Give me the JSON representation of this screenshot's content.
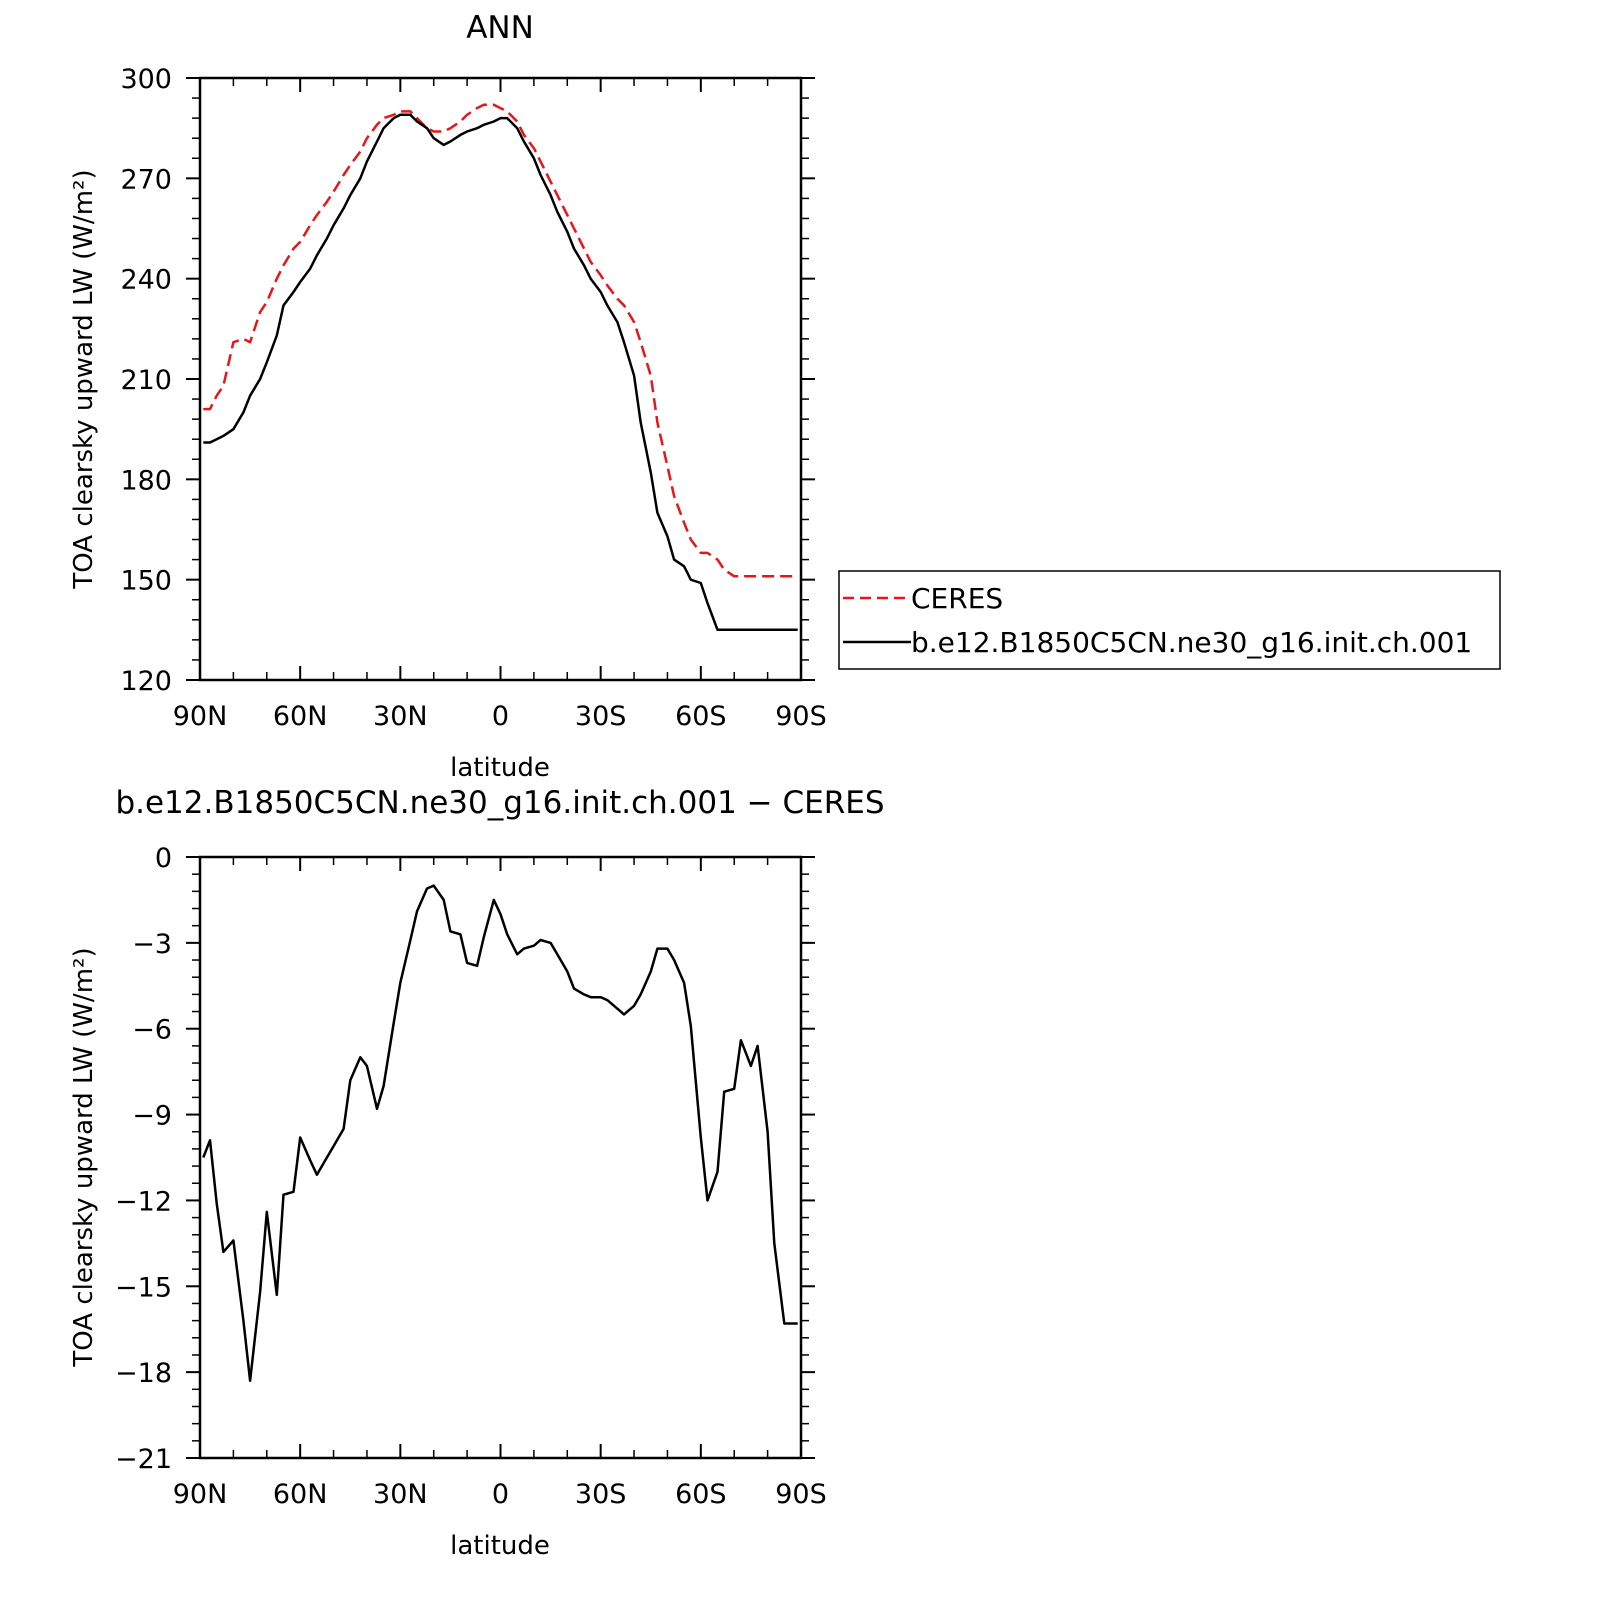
{
  "chart_data": [
    {
      "type": "line",
      "title": "ANN",
      "xlabel": "latitude",
      "ylabel": "TOA clearsky upward LW (W/m²)",
      "xlim": [
        90,
        -90
      ],
      "ylim": [
        120,
        300
      ],
      "xticks": [
        90,
        60,
        30,
        0,
        -30,
        -60,
        -90
      ],
      "xtick_labels": [
        "90N",
        "60N",
        "30N",
        "0",
        "30S",
        "60S",
        "90S"
      ],
      "yticks": [
        120,
        150,
        180,
        210,
        240,
        270,
        300
      ],
      "ytick_labels": [
        "120",
        "150",
        "180",
        "210",
        "240",
        "270",
        "300"
      ],
      "grid": false,
      "legend_position": "right",
      "series": [
        {
          "name": "CERES",
          "color": "#e8161a",
          "dash": "dashed",
          "x": [
            89,
            87,
            85,
            83,
            80,
            77,
            75,
            72,
            70,
            67,
            65,
            62,
            60,
            57,
            55,
            52,
            50,
            47,
            45,
            42,
            40,
            37,
            35,
            32,
            30,
            27,
            25,
            22,
            20,
            17,
            15,
            12,
            10,
            7,
            5,
            2,
            0,
            -2,
            -5,
            -7,
            -10,
            -12,
            -15,
            -17,
            -20,
            -22,
            -25,
            -27,
            -30,
            -32,
            -35,
            -37,
            -40,
            -42,
            -45,
            -47,
            -50,
            -52,
            -55,
            -57,
            -60,
            -62,
            -65,
            -67,
            -70,
            -72,
            -75,
            -77,
            -80,
            -82,
            -85,
            -87,
            -89
          ],
          "y": [
            201,
            201,
            205,
            208,
            221,
            222,
            221,
            230,
            233,
            240,
            244,
            249,
            251,
            256,
            259,
            263,
            266,
            271,
            274,
            278,
            282,
            286,
            288,
            289,
            290,
            290,
            288,
            285,
            284,
            284,
            285,
            287,
            289,
            291,
            292,
            292,
            291,
            290,
            287,
            283,
            279,
            275,
            269,
            265,
            259,
            255,
            249,
            245,
            241,
            238,
            234,
            232,
            227,
            221,
            211,
            197,
            184,
            175,
            167,
            162,
            158,
            158,
            156,
            153,
            151,
            151,
            151,
            151,
            151,
            151,
            151,
            151,
            151
          ]
        },
        {
          "name": "b.e12.B1850C5CN.ne30_g16.init.ch.001",
          "color": "#000000",
          "dash": "solid",
          "x": [
            89,
            87,
            85,
            83,
            80,
            77,
            75,
            72,
            70,
            67,
            65,
            62,
            60,
            57,
            55,
            52,
            50,
            47,
            45,
            42,
            40,
            37,
            35,
            32,
            30,
            27,
            25,
            22,
            20,
            17,
            15,
            12,
            10,
            7,
            5,
            2,
            0,
            -2,
            -5,
            -7,
            -10,
            -12,
            -15,
            -17,
            -20,
            -22,
            -25,
            -27,
            -30,
            -32,
            -35,
            -37,
            -40,
            -42,
            -45,
            -47,
            -50,
            -52,
            -55,
            -57,
            -60,
            -62,
            -65,
            -67,
            -70,
            -72,
            -75,
            -77,
            -80,
            -82,
            -85,
            -87,
            -89
          ],
          "y": [
            191,
            191,
            192,
            193,
            195,
            200,
            205,
            210,
            215,
            223,
            232,
            236,
            239,
            243,
            247,
            252,
            256,
            261,
            265,
            270,
            275,
            281,
            285,
            288,
            289,
            289,
            287,
            285,
            282,
            280,
            281,
            283,
            284,
            285,
            286,
            287,
            288,
            288,
            285,
            281,
            276,
            271,
            265,
            260,
            254,
            249,
            244,
            240,
            236,
            232,
            227,
            221,
            211,
            197,
            182,
            170,
            163,
            156,
            154,
            150,
            149,
            143,
            135,
            135,
            135,
            135,
            135,
            135,
            135,
            135,
            135,
            135,
            135
          ]
        }
      ]
    },
    {
      "type": "line",
      "title": "b.e12.B1850C5CN.ne30_g16.init.ch.001 − CERES",
      "xlabel": "latitude",
      "ylabel": "TOA clearsky upward LW (W/m²)",
      "xlim": [
        90,
        -90
      ],
      "ylim": [
        -21,
        0
      ],
      "xticks": [
        90,
        60,
        30,
        0,
        -30,
        -60,
        -90
      ],
      "xtick_labels": [
        "90N",
        "60N",
        "30N",
        "0",
        "30S",
        "60S",
        "90S"
      ],
      "yticks": [
        0,
        -3,
        -6,
        -9,
        -12,
        -15,
        -18,
        -21
      ],
      "ytick_labels": [
        "0",
        "−3",
        "−6",
        "−9",
        "−12",
        "−15",
        "−18",
        "−21"
      ],
      "grid": false,
      "series": [
        {
          "color": "#000000",
          "dash": "solid",
          "x": [
            89,
            87,
            85,
            83,
            80,
            77,
            75,
            72,
            70,
            67,
            65,
            62,
            60,
            57,
            55,
            52,
            50,
            47,
            45,
            42,
            40,
            37,
            35,
            32,
            30,
            27,
            25,
            22,
            20,
            17,
            15,
            12,
            10,
            7,
            5,
            2,
            0,
            -2,
            -5,
            -7,
            -10,
            -12,
            -15,
            -17,
            -20,
            -22,
            -25,
            -27,
            -30,
            -32,
            -35,
            -37,
            -40,
            -42,
            -45,
            -47,
            -50,
            -52,
            -55,
            -57,
            -60,
            -62,
            -65,
            -67,
            -70,
            -72,
            -75,
            -77,
            -80,
            -82,
            -85,
            -87,
            -89
          ],
          "y": [
            -10.5,
            -9.9,
            -12.1,
            -13.8,
            -13.4,
            -16.2,
            -18.3,
            -15.2,
            -12.4,
            -15.3,
            -11.8,
            -11.7,
            -9.8,
            -10.6,
            -11.1,
            -10.5,
            -10.1,
            -9.5,
            -7.8,
            -7.0,
            -7.3,
            -8.8,
            -8.0,
            -5.8,
            -4.4,
            -2.9,
            -1.9,
            -1.1,
            -1.0,
            -1.5,
            -2.6,
            -2.7,
            -3.7,
            -3.8,
            -2.8,
            -1.5,
            -2.0,
            -2.7,
            -3.4,
            -3.2,
            -3.1,
            -2.9,
            -3.0,
            -3.4,
            -4.0,
            -4.6,
            -4.8,
            -4.9,
            -4.9,
            -5.0,
            -5.3,
            -5.5,
            -5.2,
            -4.8,
            -4.0,
            -3.2,
            -3.2,
            -3.6,
            -4.4,
            -5.9,
            -9.8,
            -12.0,
            -11.0,
            -8.2,
            -8.1,
            -6.4,
            -7.3,
            -6.6,
            -9.6,
            -13.5,
            -16.3,
            -16.3,
            -16.3
          ]
        }
      ]
    }
  ]
}
